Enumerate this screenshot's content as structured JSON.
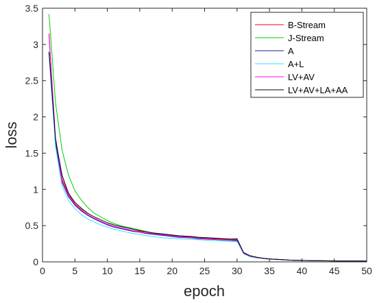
{
  "chart_data": {
    "type": "line",
    "xlabel": "epoch",
    "ylabel": "loss",
    "xlim": [
      0,
      50
    ],
    "ylim": [
      0,
      3.5
    ],
    "xticks": [
      0,
      5,
      10,
      15,
      20,
      25,
      30,
      35,
      40,
      45,
      50
    ],
    "yticks": [
      0,
      0.5,
      1,
      1.5,
      2,
      2.5,
      3,
      3.5
    ],
    "xtick_labels": [
      "0",
      "5",
      "10",
      "15",
      "20",
      "25",
      "30",
      "35",
      "40",
      "45",
      "50"
    ],
    "ytick_labels": [
      "0",
      "0.5",
      "1",
      "1.5",
      "2",
      "2.5",
      "3",
      "3.5"
    ],
    "grid": false,
    "legend_position": "top-right",
    "x": [
      1,
      2,
      3,
      4,
      5,
      6,
      7,
      8,
      9,
      10,
      11,
      12,
      13,
      14,
      15,
      16,
      17,
      18,
      19,
      20,
      21,
      22,
      23,
      24,
      25,
      26,
      27,
      28,
      29,
      30,
      31,
      32,
      33,
      34,
      35,
      36,
      37,
      38,
      39,
      40,
      41,
      42,
      43,
      44,
      45,
      46,
      47,
      48,
      49,
      50
    ],
    "series": [
      {
        "name": "B-Stream",
        "color": "#ff0000",
        "values": [
          3.15,
          1.7,
          1.15,
          0.93,
          0.8,
          0.72,
          0.65,
          0.6,
          0.56,
          0.52,
          0.49,
          0.47,
          0.45,
          0.43,
          0.42,
          0.4,
          0.39,
          0.38,
          0.37,
          0.36,
          0.35,
          0.345,
          0.34,
          0.33,
          0.325,
          0.32,
          0.315,
          0.31,
          0.305,
          0.3,
          0.12,
          0.08,
          0.06,
          0.05,
          0.04,
          0.035,
          0.03,
          0.025,
          0.022,
          0.02,
          0.018,
          0.016,
          0.015,
          0.014,
          0.013,
          0.012,
          0.012,
          0.011,
          0.011,
          0.01
        ]
      },
      {
        "name": "J-Stream",
        "color": "#00cc00",
        "values": [
          3.42,
          2.2,
          1.55,
          1.2,
          0.98,
          0.85,
          0.75,
          0.67,
          0.62,
          0.57,
          0.53,
          0.5,
          0.48,
          0.46,
          0.44,
          0.42,
          0.4,
          0.39,
          0.38,
          0.37,
          0.36,
          0.355,
          0.35,
          0.34,
          0.335,
          0.33,
          0.325,
          0.32,
          0.315,
          0.31,
          0.12,
          0.08,
          0.06,
          0.05,
          0.04,
          0.035,
          0.03,
          0.025,
          0.022,
          0.02,
          0.018,
          0.016,
          0.015,
          0.014,
          0.013,
          0.012,
          0.012,
          0.011,
          0.011,
          0.01
        ]
      },
      {
        "name": "A",
        "color": "#1a1aa6",
        "values": [
          2.88,
          1.65,
          1.1,
          0.9,
          0.78,
          0.7,
          0.64,
          0.59,
          0.55,
          0.51,
          0.48,
          0.46,
          0.44,
          0.42,
          0.41,
          0.39,
          0.38,
          0.37,
          0.36,
          0.35,
          0.34,
          0.335,
          0.33,
          0.32,
          0.315,
          0.31,
          0.305,
          0.3,
          0.295,
          0.29,
          0.12,
          0.08,
          0.06,
          0.05,
          0.04,
          0.035,
          0.03,
          0.025,
          0.022,
          0.02,
          0.018,
          0.016,
          0.015,
          0.014,
          0.013,
          0.012,
          0.012,
          0.011,
          0.011,
          0.01
        ]
      },
      {
        "name": "A+L",
        "color": "#33e0ff",
        "values": [
          2.85,
          1.6,
          1.05,
          0.85,
          0.73,
          0.65,
          0.59,
          0.55,
          0.51,
          0.48,
          0.45,
          0.43,
          0.41,
          0.39,
          0.38,
          0.36,
          0.35,
          0.34,
          0.33,
          0.325,
          0.32,
          0.315,
          0.31,
          0.305,
          0.3,
          0.295,
          0.29,
          0.285,
          0.28,
          0.28,
          0.11,
          0.07,
          0.055,
          0.045,
          0.035,
          0.03,
          0.027,
          0.023,
          0.02,
          0.018,
          0.016,
          0.015,
          0.014,
          0.013,
          0.012,
          0.011,
          0.011,
          0.01,
          0.01,
          0.01
        ]
      },
      {
        "name": "LV+AV",
        "color": "#ff00ff",
        "values": [
          3.12,
          1.72,
          1.12,
          0.92,
          0.79,
          0.71,
          0.65,
          0.6,
          0.56,
          0.52,
          0.49,
          0.47,
          0.45,
          0.43,
          0.41,
          0.4,
          0.39,
          0.38,
          0.37,
          0.36,
          0.35,
          0.34,
          0.335,
          0.33,
          0.32,
          0.315,
          0.31,
          0.305,
          0.3,
          0.31,
          0.12,
          0.08,
          0.06,
          0.05,
          0.04,
          0.035,
          0.03,
          0.025,
          0.022,
          0.02,
          0.018,
          0.016,
          0.015,
          0.014,
          0.013,
          0.012,
          0.012,
          0.011,
          0.011,
          0.01
        ]
      },
      {
        "name": "LV+AV+LA+AA",
        "color": "#000000",
        "values": [
          2.9,
          1.7,
          1.2,
          0.95,
          0.82,
          0.74,
          0.67,
          0.62,
          0.58,
          0.54,
          0.51,
          0.49,
          0.47,
          0.45,
          0.43,
          0.415,
          0.4,
          0.39,
          0.38,
          0.37,
          0.36,
          0.355,
          0.35,
          0.34,
          0.335,
          0.33,
          0.325,
          0.32,
          0.315,
          0.32,
          0.13,
          0.085,
          0.065,
          0.05,
          0.04,
          0.035,
          0.03,
          0.025,
          0.022,
          0.02,
          0.018,
          0.016,
          0.015,
          0.014,
          0.013,
          0.012,
          0.012,
          0.011,
          0.011,
          0.01
        ]
      }
    ]
  }
}
